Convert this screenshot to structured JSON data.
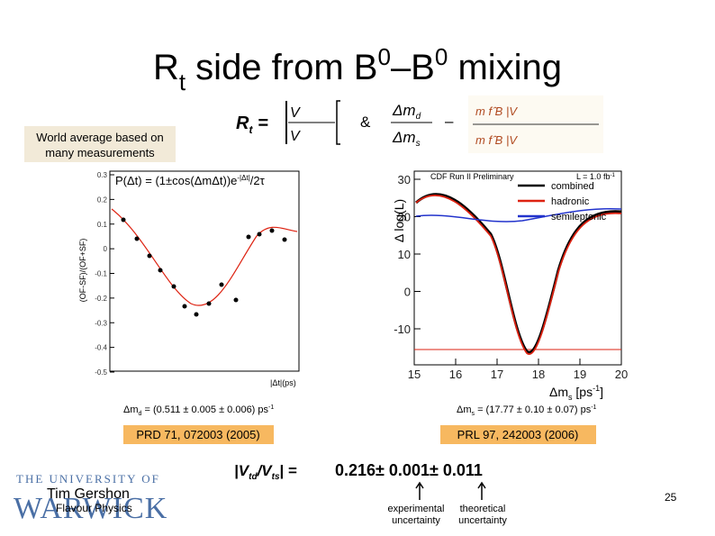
{
  "slide": {
    "title": {
      "parts": [
        "R",
        "t",
        " side from B",
        "0",
        "–B",
        "0",
        " mixing"
      ]
    },
    "formula": {
      "lhs": "R",
      "lhs_sub": "t",
      "eq": "=",
      "ratio": "V",
      "and": "&",
      "dm_top": "Δm",
      "dm_top_sub": "d",
      "dm_bottom": "Δm",
      "dm_bottom_sub": "s",
      "minus": "–"
    },
    "note": [
      "World average based on",
      "many measurements"
    ],
    "left_plot": {
      "header": "P(Δt) = (1±cos(ΔmΔt))e",
      "header_sup": "-|Δt|",
      "header_tail": "/2τ",
      "ylabel": "(OF-SF)/(OF+SF)",
      "xlabel": "|Δt|(ps)",
      "yticks": [
        "0.3",
        "0.2",
        "0.1",
        "0",
        "-0.1",
        "-0.2",
        "-0.3",
        "-0.4",
        "-0.5"
      ],
      "result": "Δm",
      "result_sub": "d",
      "result_tail": " = (0.511 ± 0.005 ± 0.006) ps",
      "result_sup": "-1",
      "reference": "PRD 71, 072003 (2005)"
    },
    "right_plot": {
      "header": "CDF Run II Preliminary",
      "lumi": "L = 1.0 fb",
      "lumi_sup": "-1",
      "ylabel": "Δ log(L)",
      "legend": [
        "combined",
        "hadronic",
        "semileptonic"
      ],
      "yticks": [
        "30",
        "20",
        "10",
        "0",
        "-10"
      ],
      "xticks": [
        "15",
        "16",
        "17",
        "18",
        "19",
        "20"
      ],
      "xlabel": "Δm",
      "xlabel_sub": "s",
      "xlabel_tail": " [ps",
      "xlabel_sup": "-1",
      "xlabel_end": "]",
      "result": "Δm",
      "result_sub": "s",
      "result_tail": " = (17.77 ± 0.10 ± 0.07) ps",
      "result_sup": "-1",
      "reference": "PRL 97, 242003 (2006)"
    },
    "result": {
      "lhs": "|V",
      "lhs_sub1": "td",
      "mid": "/V",
      "lhs_sub2": "ts",
      "eq": "| =",
      "value": "0.216± 0.001± 0.011",
      "exp": [
        "experimental",
        "uncertainty"
      ],
      "theo": [
        "theoretical",
        "uncertainty"
      ]
    },
    "footer": {
      "author": "Tim Gershon",
      "course": "Flavour Physics",
      "page": "25",
      "logo_top": "THE UNIVERSITY OF",
      "logo_bottom": "WARWICK"
    }
  }
}
